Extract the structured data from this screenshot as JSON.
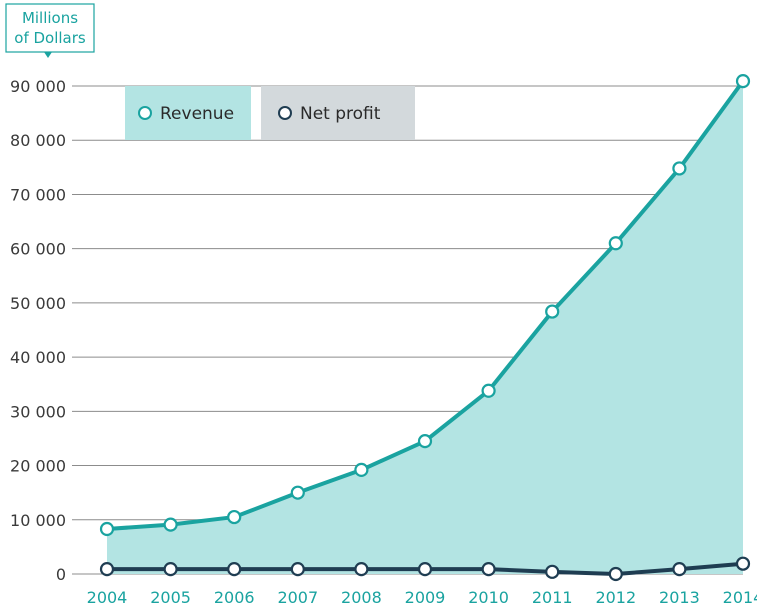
{
  "chart_data": {
    "type": "area",
    "unit_label": [
      "Millions",
      "of Dollars"
    ],
    "categories": [
      "2004",
      "2005",
      "2006",
      "2007",
      "2008",
      "2009",
      "2010",
      "2011",
      "2012",
      "2013",
      "2014"
    ],
    "ylim": [
      0,
      90000
    ],
    "y_ticks": [
      0,
      10000,
      20000,
      30000,
      40000,
      50000,
      60000,
      70000,
      80000,
      90000
    ],
    "y_tick_labels": [
      "0",
      "10 000",
      "20 000",
      "30 000",
      "40 000",
      "50 000",
      "60 000",
      "70 000",
      "80 000",
      "90 000"
    ],
    "grid": true,
    "legend_position": "top-left",
    "series": [
      {
        "name": "Revenue",
        "color": "#1aa3a0",
        "fill": "#b3e4e3",
        "legend_bg": "#b3e4e3",
        "values": [
          8300,
          9100,
          10500,
          15000,
          19200,
          24500,
          33800,
          48400,
          61000,
          74800,
          90900
        ]
      },
      {
        "name": "Net profit",
        "color": "#1f3d52",
        "legend_bg": "#d3d9dc",
        "values": [
          900,
          900,
          900,
          900,
          900,
          900,
          900,
          400,
          0,
          900,
          1900
        ]
      }
    ]
  }
}
